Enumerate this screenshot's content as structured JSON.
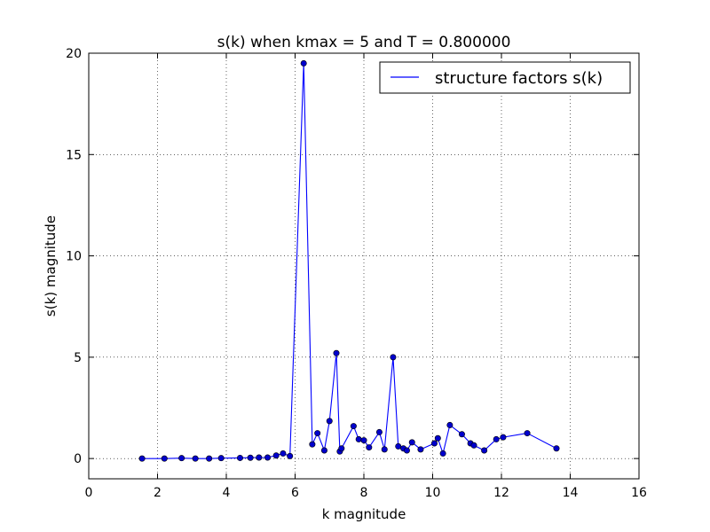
{
  "chart_data": {
    "type": "line",
    "title": "s(k) when kmax = 5 and T = 0.800000",
    "xlabel": "k magnitude",
    "ylabel": "s(k) magnitude",
    "xlim": [
      0,
      16
    ],
    "ylim": [
      -1,
      20
    ],
    "xticks": [
      0,
      2,
      4,
      6,
      8,
      10,
      12,
      14,
      16
    ],
    "yticks": [
      0,
      5,
      10,
      15,
      20
    ],
    "grid": true,
    "legend": {
      "position": "top-right",
      "entries": [
        "structure factors s(k)"
      ]
    },
    "series": [
      {
        "name": "structure factors s(k)",
        "color": "#0000ff",
        "marker": "circle",
        "points": [
          [
            1.55,
            0.0
          ],
          [
            2.2,
            0.0
          ],
          [
            2.7,
            0.02
          ],
          [
            3.1,
            0.0
          ],
          [
            3.5,
            0.0
          ],
          [
            3.85,
            0.02
          ],
          [
            4.4,
            0.03
          ],
          [
            4.7,
            0.04
          ],
          [
            4.95,
            0.05
          ],
          [
            5.2,
            0.05
          ],
          [
            5.45,
            0.15
          ],
          [
            5.65,
            0.25
          ],
          [
            5.85,
            0.12
          ],
          [
            6.25,
            19.5
          ],
          [
            6.5,
            0.7
          ],
          [
            6.65,
            1.25
          ],
          [
            6.85,
            0.4
          ],
          [
            7.0,
            1.85
          ],
          [
            7.2,
            5.2
          ],
          [
            7.3,
            0.35
          ],
          [
            7.35,
            0.5
          ],
          [
            7.7,
            1.6
          ],
          [
            7.85,
            0.95
          ],
          [
            8.0,
            0.9
          ],
          [
            8.15,
            0.55
          ],
          [
            8.45,
            1.3
          ],
          [
            8.6,
            0.45
          ],
          [
            8.85,
            5.0
          ],
          [
            9.0,
            0.6
          ],
          [
            9.15,
            0.5
          ],
          [
            9.25,
            0.4
          ],
          [
            9.4,
            0.8
          ],
          [
            9.65,
            0.45
          ],
          [
            10.05,
            0.75
          ],
          [
            10.15,
            1.0
          ],
          [
            10.3,
            0.25
          ],
          [
            10.5,
            1.65
          ],
          [
            10.85,
            1.2
          ],
          [
            11.1,
            0.75
          ],
          [
            11.2,
            0.65
          ],
          [
            11.5,
            0.4
          ],
          [
            11.85,
            0.95
          ],
          [
            12.05,
            1.05
          ],
          [
            12.75,
            1.25
          ],
          [
            13.6,
            0.5
          ]
        ]
      }
    ]
  }
}
